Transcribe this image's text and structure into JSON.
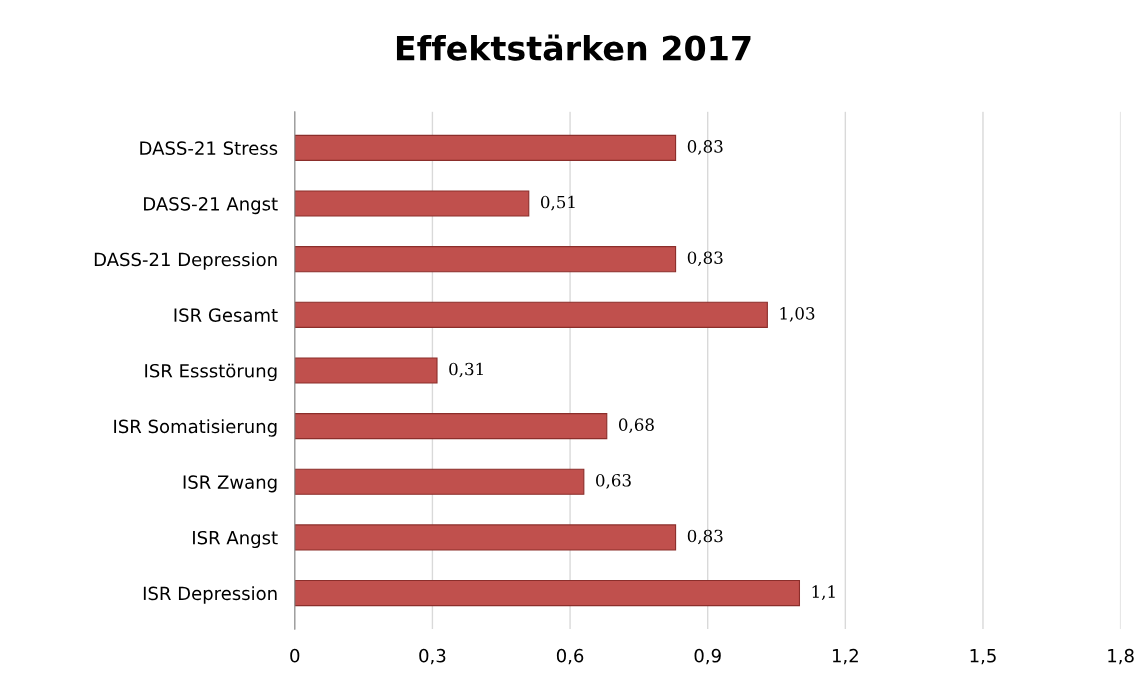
{
  "chart_data": {
    "type": "bar",
    "orientation": "horizontal",
    "title": "Effektstärken 2017",
    "categories": [
      "DASS-21 Stress",
      "DASS-21 Angst",
      "DASS-21 Depression",
      "ISR Gesamt",
      "ISR Essstörung",
      "ISR Somatisierung",
      "ISR Zwang",
      "ISR Angst",
      "ISR Depression"
    ],
    "values": [
      0.83,
      0.51,
      0.83,
      1.03,
      0.31,
      0.68,
      0.63,
      0.83,
      1.1
    ],
    "value_labels": [
      "0,83",
      "0,51",
      "0,83",
      "1,03",
      "0,31",
      "0,68",
      "0,63",
      "0,83",
      "1,1"
    ],
    "color": "#c0504d",
    "xlim": [
      0,
      1.8
    ],
    "xticks": [
      0,
      {
        "value": 0.3,
        "label": "0,3"
      },
      {
        "value": 0.6,
        "label": "0,6"
      },
      {
        "value": 0.9,
        "label": "0,9"
      },
      {
        "value": 1.2,
        "label": "1,2"
      },
      {
        "value": 1.5,
        "label": "1,5"
      },
      {
        "value": 1.8,
        "label": "1,8"
      }
    ],
    "grid": "x"
  }
}
